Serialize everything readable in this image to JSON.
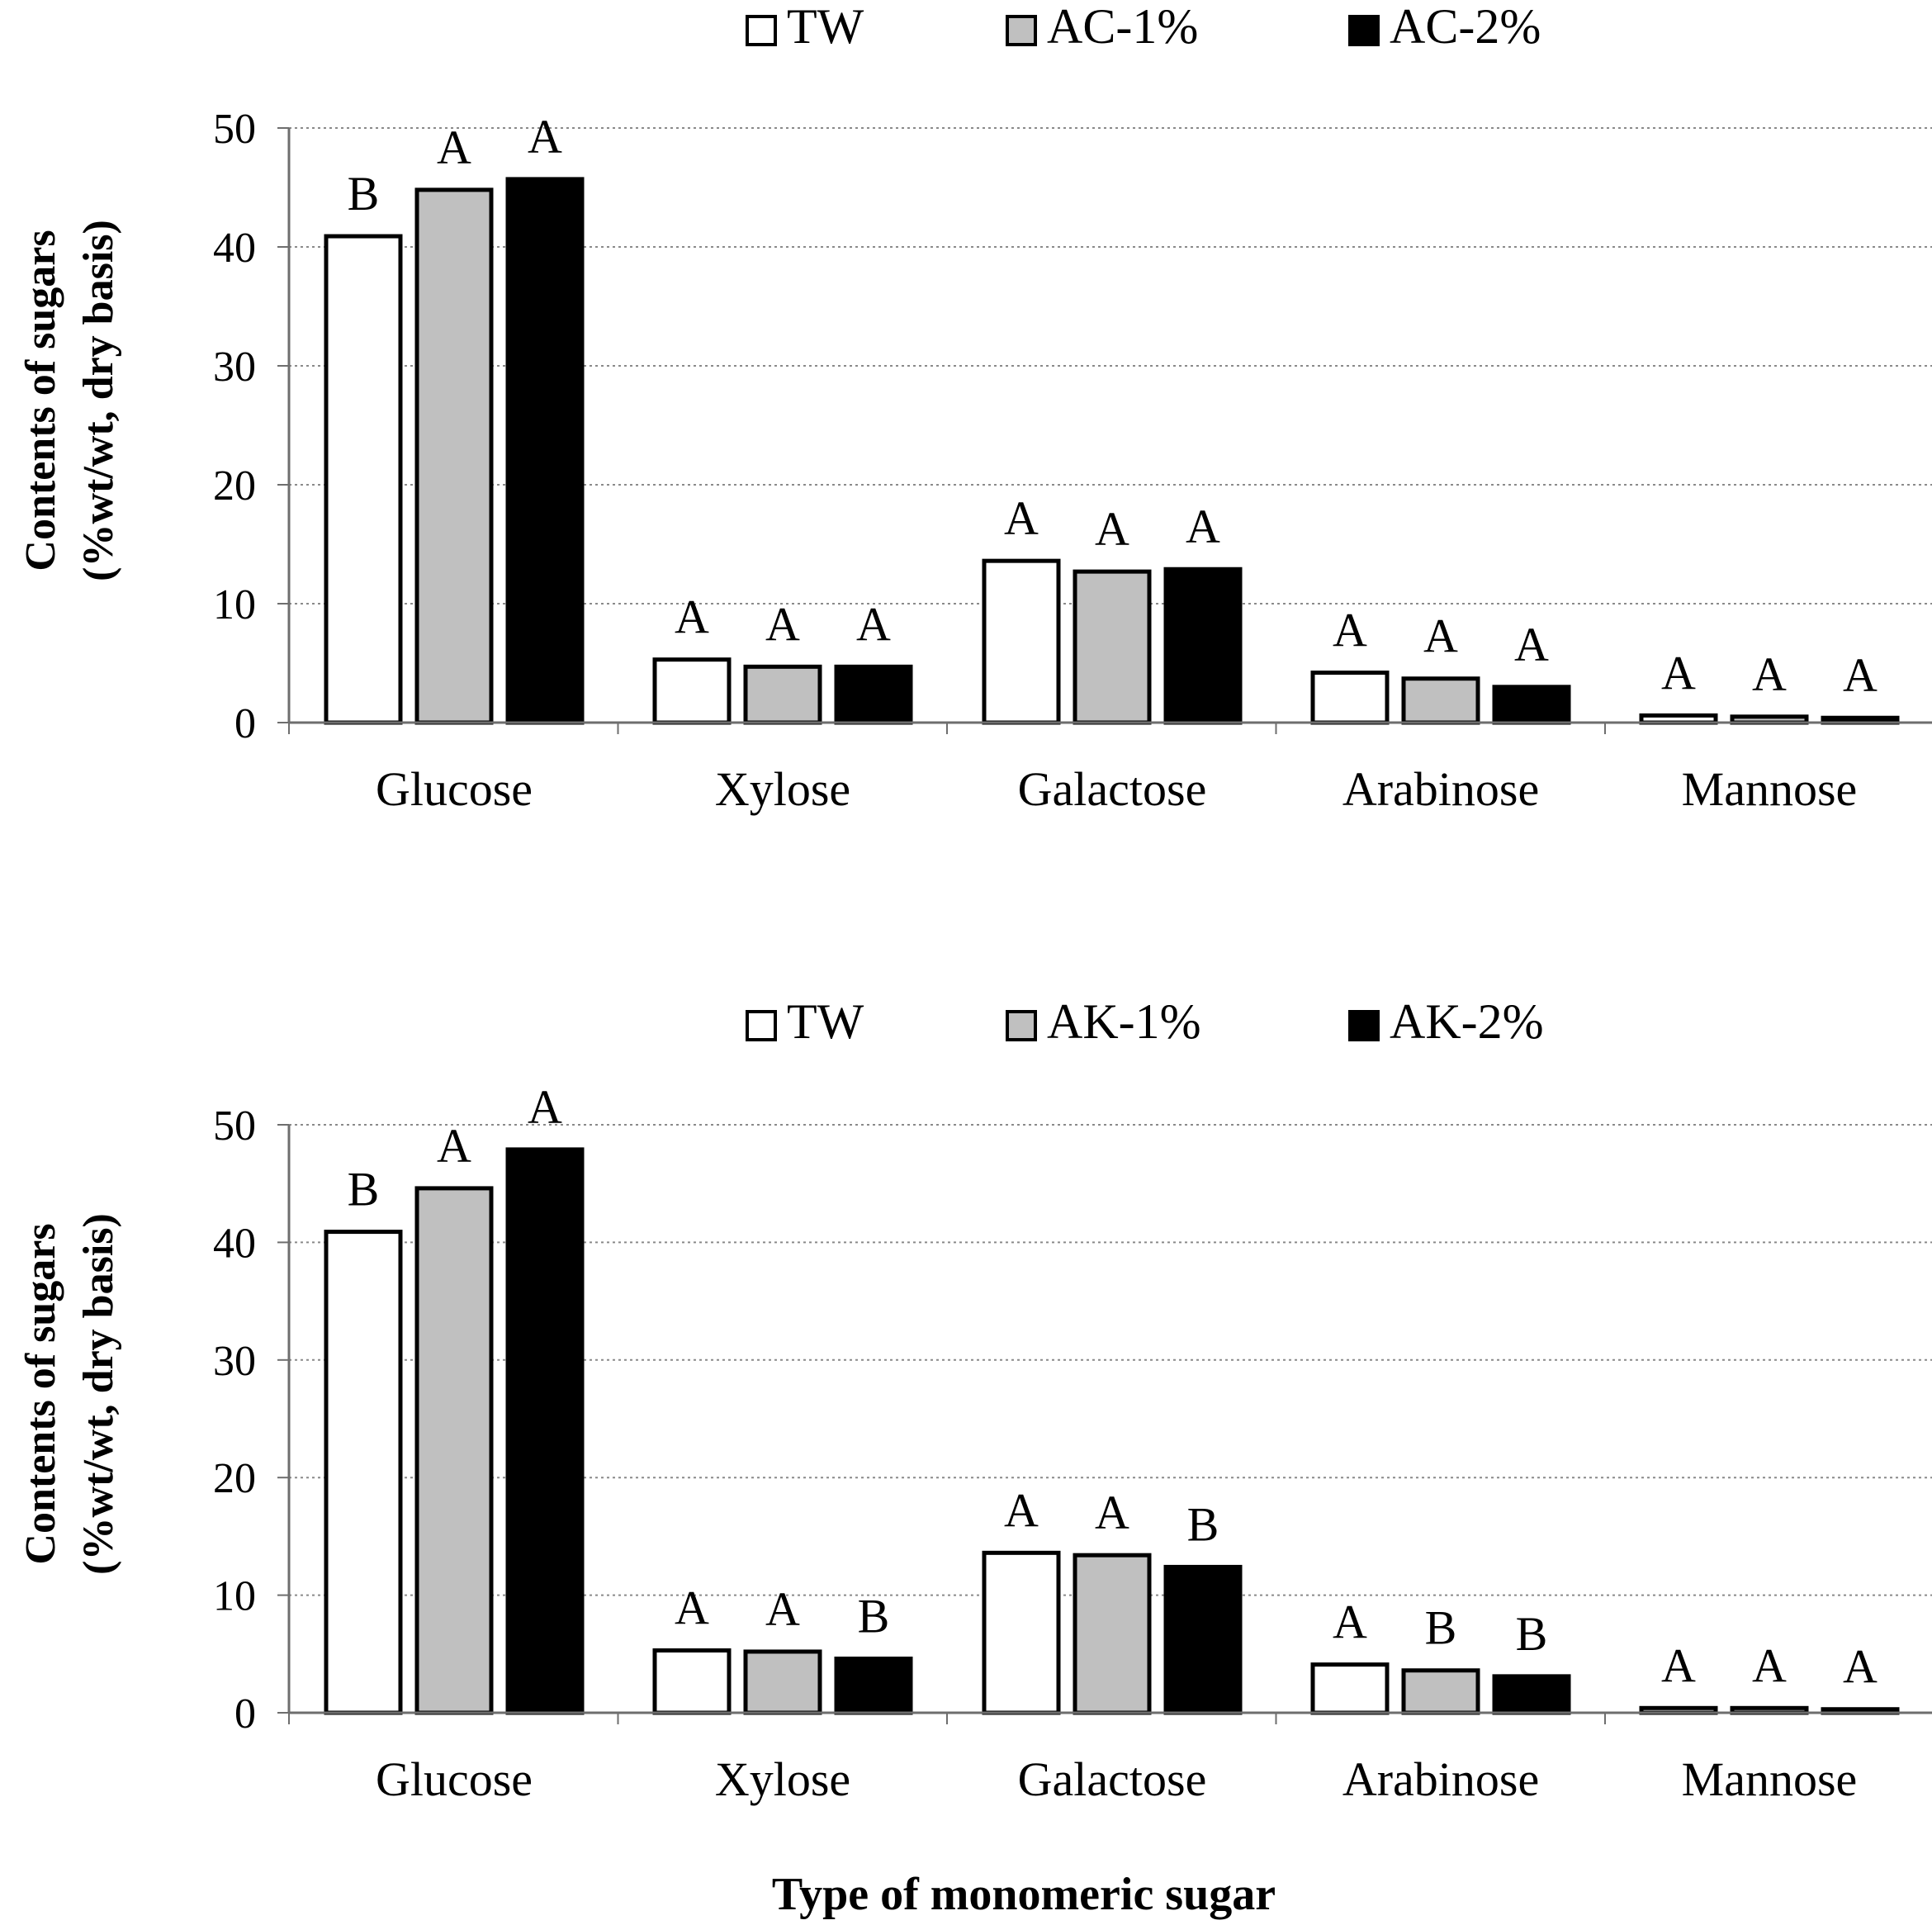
{
  "chart_data": [
    {
      "type": "bar",
      "categories": [
        "Glucose",
        "Xylose",
        "Galactose",
        "Arabinose",
        "Mannose"
      ],
      "series": [
        {
          "name": "TW",
          "values": [
            40.9,
            5.3,
            13.6,
            4.2,
            0.6
          ],
          "color": "#ffffff",
          "letters": [
            "B",
            "A",
            "A",
            "A",
            "A"
          ]
        },
        {
          "name": "AC-1%",
          "values": [
            44.8,
            4.7,
            12.7,
            3.7,
            0.5
          ],
          "color": "#c0c0c0",
          "letters": [
            "A",
            "A",
            "A",
            "A",
            "A"
          ]
        },
        {
          "name": "AC-2%",
          "values": [
            45.7,
            4.7,
            12.9,
            3.0,
            0.4
          ],
          "color": "#000000",
          "letters": [
            "A",
            "A",
            "A",
            "A",
            "A"
          ]
        }
      ],
      "yticks": [
        "0",
        "10",
        "20",
        "30",
        "40",
        "50"
      ],
      "ylim": [
        0,
        50
      ],
      "ylabel_line1": "Contents of sugars",
      "ylabel_line2": "(%wt/wt, dry basis)",
      "grid": true,
      "legend": "top"
    },
    {
      "type": "bar",
      "categories": [
        "Glucose",
        "Xylose",
        "Galactose",
        "Arabinose",
        "Mannose"
      ],
      "series": [
        {
          "name": "TW",
          "values": [
            40.9,
            5.3,
            13.6,
            4.1,
            0.4
          ],
          "color": "#ffffff",
          "letters": [
            "B",
            "A",
            "A",
            "A",
            "A"
          ]
        },
        {
          "name": "AK-1%",
          "values": [
            44.6,
            5.2,
            13.4,
            3.6,
            0.4
          ],
          "color": "#c0c0c0",
          "letters": [
            "A",
            "A",
            "A",
            "B",
            "A"
          ]
        },
        {
          "name": "AK-2%",
          "values": [
            47.9,
            4.6,
            12.4,
            3.1,
            0.3
          ],
          "color": "#000000",
          "letters": [
            "A",
            "B",
            "B",
            "B",
            "A"
          ]
        }
      ],
      "yticks": [
        "0",
        "10",
        "20",
        "30",
        "40",
        "50"
      ],
      "ylim": [
        0,
        50
      ],
      "ylabel_line1": "Contents of sugars",
      "ylabel_line2": "(%wt/wt, dry basis)",
      "grid": true,
      "legend": "top"
    }
  ],
  "xlabel": "Type of monomeric sugar"
}
